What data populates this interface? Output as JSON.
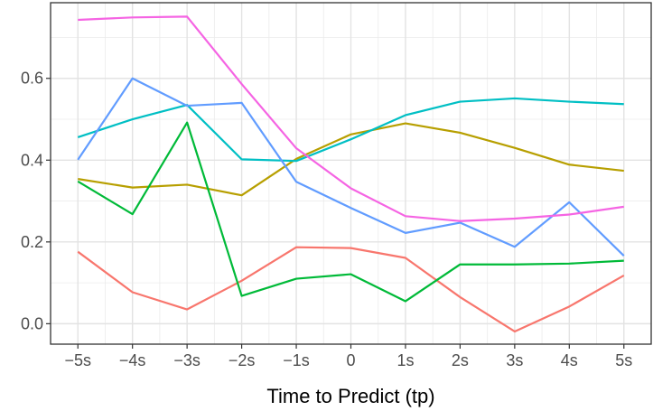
{
  "chart_data": {
    "type": "line",
    "title": "",
    "xlabel": "Time to Predict (tp)",
    "ylabel": "",
    "categories": [
      "−5s",
      "−4s",
      "−3s",
      "−2s",
      "−1s",
      "0",
      "1s",
      "2s",
      "3s",
      "4s",
      "5s"
    ],
    "x": [
      -5,
      -4,
      -3,
      -2,
      -1,
      0,
      1,
      2,
      3,
      4,
      5
    ],
    "xlim": [
      -5.5,
      5.5
    ],
    "ylim": [
      -0.05,
      0.785
    ],
    "yticks": [
      0.0,
      0.2,
      0.4,
      0.6
    ],
    "ytick_labels": [
      "0.0",
      "0.2",
      "0.4",
      "0.6"
    ],
    "grid": true,
    "legend": "none",
    "series": [
      {
        "color": "#F8766D",
        "values": [
          0.176,
          0.077,
          0.035,
          0.105,
          0.187,
          0.185,
          0.161,
          0.065,
          -0.019,
          0.042,
          0.118
        ]
      },
      {
        "color": "#B79F00",
        "values": [
          0.354,
          0.333,
          0.34,
          0.314,
          0.403,
          0.463,
          0.49,
          0.467,
          0.43,
          0.389,
          0.374
        ]
      },
      {
        "color": "#00BA38",
        "values": [
          0.348,
          0.268,
          0.492,
          0.068,
          0.11,
          0.121,
          0.055,
          0.145,
          0.145,
          0.147,
          0.154
        ]
      },
      {
        "color": "#00BFC4",
        "values": [
          0.456,
          0.5,
          0.535,
          0.402,
          0.398,
          0.451,
          0.51,
          0.543,
          0.551,
          0.543,
          0.537
        ]
      },
      {
        "color": "#619CFF",
        "values": [
          0.401,
          0.6,
          0.533,
          0.54,
          0.347,
          0.283,
          0.222,
          0.247,
          0.188,
          0.297,
          0.166
        ]
      },
      {
        "color": "#F564E3",
        "values": [
          0.743,
          0.749,
          0.751,
          0.586,
          0.429,
          0.331,
          0.263,
          0.251,
          0.257,
          0.267,
          0.286
        ]
      }
    ]
  }
}
